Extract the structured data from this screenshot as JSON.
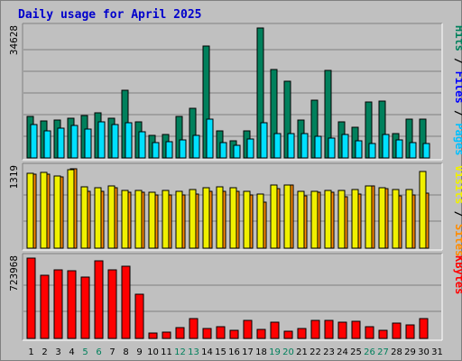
{
  "title": "Daily usage for April 2025",
  "colors": {
    "hits": "#00805c",
    "files": "#00c0ff",
    "pages": "#00e0ff",
    "visits": "#f0f000",
    "sites": "#ff8c00",
    "kbytes": "#ff0000",
    "weekend_day": "#00805c",
    "weekday": "#000000"
  },
  "chart_data": [
    {
      "type": "bar",
      "panel": "top",
      "max_label": "34628",
      "ymax": 34628,
      "right_label": [
        {
          "text": "Hits",
          "color": "#00805c"
        },
        {
          "text": " / ",
          "color": "#000000"
        },
        {
          "text": "Files",
          "color": "#0000ff"
        },
        {
          "text": " / ",
          "color": "#000000"
        },
        {
          "text": "Pages",
          "color": "#00c0ff"
        }
      ],
      "categories": [
        "1",
        "2",
        "3",
        "4",
        "5",
        "6",
        "7",
        "8",
        "9",
        "10",
        "11",
        "12",
        "13",
        "14",
        "15",
        "16",
        "17",
        "18",
        "19",
        "20",
        "21",
        "22",
        "23",
        "24",
        "25",
        "26",
        "27",
        "28",
        "29",
        "30",
        "31"
      ],
      "series": [
        {
          "name": "Hits",
          "values": [
            11000,
            9900,
            10100,
            10600,
            11300,
            12000,
            10700,
            18000,
            9500,
            6000,
            6300,
            11100,
            13300,
            29800,
            7300,
            4600,
            7300,
            34600,
            23500,
            20400,
            10100,
            15400,
            23400,
            9500,
            8200,
            15000,
            15100,
            6400,
            10300,
            10400,
            0
          ]
        },
        {
          "name": "Pages",
          "values": [
            8900,
            7300,
            8000,
            8600,
            7600,
            9600,
            9000,
            9400,
            6900,
            4100,
            4300,
            4800,
            5900,
            10300,
            4100,
            3300,
            5000,
            9300,
            6600,
            6500,
            6400,
            5700,
            5300,
            6300,
            4600,
            3800,
            6300,
            4900,
            4100,
            3900,
            0
          ]
        }
      ]
    },
    {
      "type": "bar",
      "panel": "middle",
      "max_label": "1319",
      "ymax": 1319,
      "right_label": [
        {
          "text": "Visits",
          "color": "#f0f000"
        },
        {
          "text": " / ",
          "color": "#000000"
        },
        {
          "text": "Sites",
          "color": "#ff8c00"
        }
      ],
      "categories": [
        "1",
        "2",
        "3",
        "4",
        "5",
        "6",
        "7",
        "8",
        "9",
        "10",
        "11",
        "12",
        "13",
        "14",
        "15",
        "16",
        "17",
        "18",
        "19",
        "20",
        "21",
        "22",
        "23",
        "24",
        "25",
        "26",
        "27",
        "28",
        "29",
        "30",
        "31"
      ],
      "series": [
        {
          "name": "Visits",
          "values": [
            1210,
            1220,
            1170,
            1310,
            940,
            930,
            990,
            920,
            920,
            880,
            880,
            870,
            890,
            930,
            940,
            940,
            880,
            760,
            980,
            1040,
            860,
            920,
            920,
            850,
            890,
            1030,
            980,
            860,
            880,
            910,
            0
          ]
        },
        {
          "name": "Sites",
          "values": [
            1230,
            1240,
            1190,
            1290,
            1010,
            990,
            1020,
            950,
            950,
            920,
            950,
            930,
            960,
            990,
            1010,
            1000,
            930,
            890,
            1040,
            1040,
            940,
            940,
            950,
            950,
            960,
            1030,
            1000,
            960,
            960,
            1260,
            0
          ]
        }
      ]
    },
    {
      "type": "bar",
      "panel": "bottom",
      "max_label": "723968",
      "ymax": 723968,
      "right_label": [
        {
          "text": "KBytes",
          "color": "#ff0000"
        }
      ],
      "categories": [
        "1",
        "2",
        "3",
        "4",
        "5",
        "6",
        "7",
        "8",
        "9",
        "10",
        "11",
        "12",
        "13",
        "14",
        "15",
        "16",
        "17",
        "18",
        "19",
        "20",
        "21",
        "22",
        "23",
        "24",
        "25",
        "26",
        "27",
        "28",
        "29",
        "30",
        "31"
      ],
      "series": [
        {
          "name": "KBytes",
          "values": [
            724000,
            566000,
            618000,
            608000,
            557000,
            703000,
            621000,
            649000,
            396000,
            52000,
            58000,
            95000,
            180000,
            93000,
            104000,
            75000,
            163000,
            80000,
            147000,
            65000,
            86000,
            166000,
            159000,
            145000,
            151000,
            103000,
            73000,
            141000,
            124000,
            178000,
            0
          ]
        }
      ]
    }
  ],
  "day_labels": [
    "1",
    "2",
    "3",
    "4",
    "5",
    "6",
    "7",
    "8",
    "9",
    "10",
    "11",
    "12",
    "13",
    "14",
    "15",
    "16",
    "17",
    "18",
    "19",
    "20",
    "21",
    "22",
    "23",
    "24",
    "25",
    "26",
    "27",
    "28",
    "29",
    "30",
    "31"
  ],
  "weekend_days": [
    "5",
    "6",
    "12",
    "13",
    "19",
    "20",
    "26",
    "27"
  ]
}
